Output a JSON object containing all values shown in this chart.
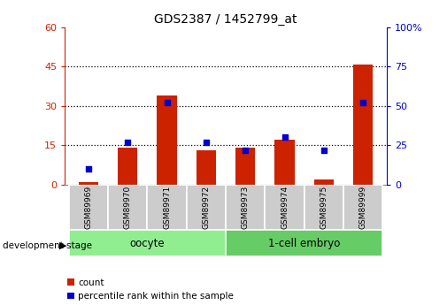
{
  "title": "GDS2387 / 1452799_at",
  "samples": [
    "GSM89969",
    "GSM89970",
    "GSM89971",
    "GSM89972",
    "GSM89973",
    "GSM89974",
    "GSM89975",
    "GSM89999"
  ],
  "count_values": [
    1,
    14,
    34,
    13,
    14,
    17,
    2,
    46
  ],
  "percentile_values": [
    10,
    27,
    52,
    27,
    22,
    30,
    22,
    52
  ],
  "groups": [
    {
      "label": "oocyte",
      "indices": [
        0,
        1,
        2,
        3
      ],
      "color": "#90ee90"
    },
    {
      "label": "1-cell embryo",
      "indices": [
        4,
        5,
        6,
        7
      ],
      "color": "#66cc66"
    }
  ],
  "ylim_left": [
    0,
    60
  ],
  "ylim_right": [
    0,
    100
  ],
  "yticks_left": [
    0,
    15,
    30,
    45,
    60
  ],
  "ytick_labels_left": [
    "0",
    "15",
    "30",
    "45",
    "60"
  ],
  "yticks_right": [
    0,
    25,
    50,
    75,
    100
  ],
  "ytick_labels_right": [
    "0",
    "25",
    "50",
    "75",
    "100%"
  ],
  "bar_color": "#cc2200",
  "dot_color": "#0000cc",
  "bar_width": 0.5,
  "group_label_text": "development stage",
  "legend_count_label": "count",
  "legend_percentile_label": "percentile rank within the sample",
  "sample_box_color": "#cccccc",
  "bg_color": "#ffffff"
}
